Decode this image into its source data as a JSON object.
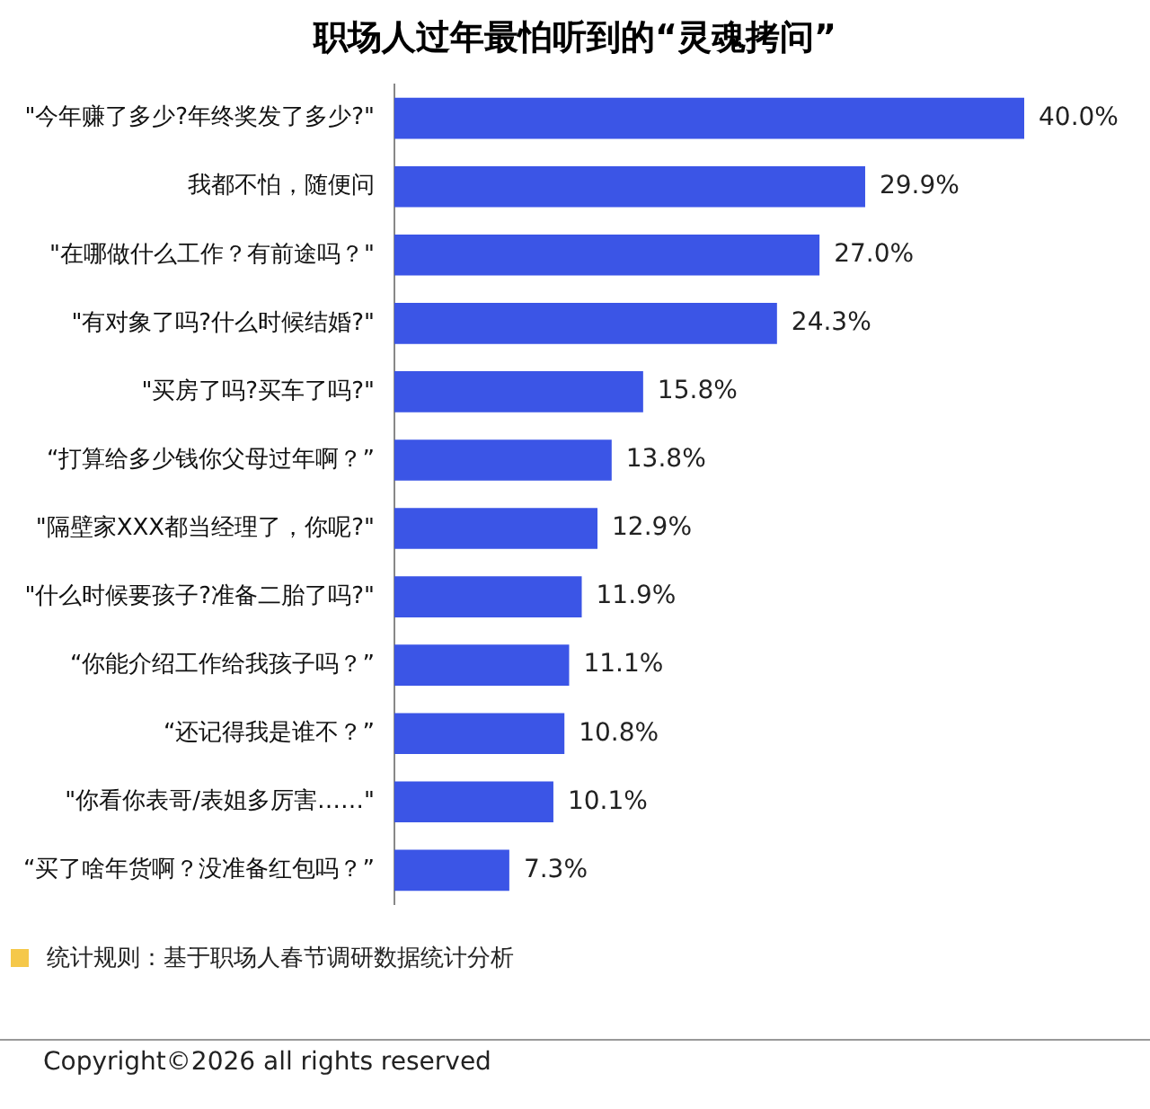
{
  "chart_data": {
    "type": "bar",
    "orientation": "horizontal",
    "title": "职场人过年最怕听到的“灵魂拷问”",
    "categories": [
      "\"今年赚了多少?年终奖发了多少?\"",
      "我都不怕，随便问",
      "\"在哪做什么工作？有前途吗？\"",
      "\"有对象了吗?什么时候结婚?\"",
      "\"买房了吗?买车了吗?\"",
      "“打算给多少钱你父母过年啊？”",
      "\"隔壁家XXX都当经理了，你呢?\"",
      "\"什么时候要孩子?准备二胎了吗?\"",
      "“你能介绍工作给我孩子吗？”",
      "“还记得我是谁不？”",
      "\"你看你表哥/表姐多厉害……\"",
      "“买了啥年货啊？没准备红包吗？”"
    ],
    "values": [
      40.0,
      29.9,
      27.0,
      24.3,
      15.8,
      13.8,
      12.9,
      11.9,
      11.1,
      10.8,
      10.1,
      7.3
    ],
    "value_labels": [
      "40.0%",
      "29.9%",
      "27.0%",
      "24.3%",
      "15.8%",
      "13.8%",
      "12.9%",
      "11.9%",
      "11.1%",
      "10.8%",
      "10.1%",
      "7.3%"
    ],
    "color": "#3b55e6",
    "legend": false,
    "annotations": [
      "统计规则：基于职场人春节调研数据统计分析",
      "Copyright©2026 all rights reserved"
    ]
  }
}
